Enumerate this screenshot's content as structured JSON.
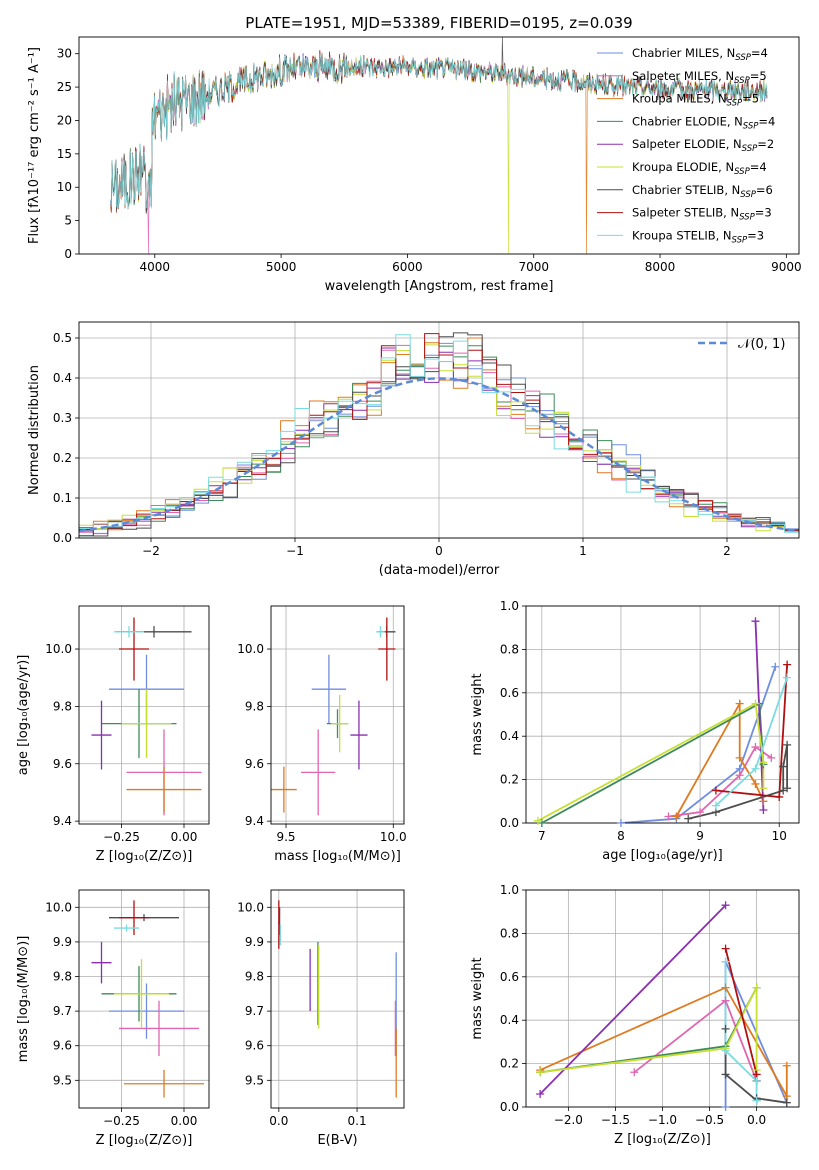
{
  "colors": {
    "Chabrier MILES": "#6f8ee0",
    "Salpeter MILES": "#e066b0",
    "Kroupa MILES": "#e07a1f",
    "Chabrier ELODIE": "#3f8a5a",
    "Salpeter ELODIE": "#8b2fb0",
    "Kroupa ELODIE": "#c6e032",
    "Chabrier STELIB": "#4d4d4d",
    "Salpeter STELIB": "#b01010",
    "Kroupa STELIB": "#7adbe0"
  },
  "chart_data": [
    {
      "id": "spectrum",
      "type": "line",
      "title": "PLATE=1951, MJD=53389, FIBERID=0195, z=0.039",
      "xlabel": "wavelength [Angstrom, rest frame]",
      "ylabel": "Flux [fλ10⁻¹⁷ erg cm⁻² s⁻¹ A⁻¹]",
      "xlim": [
        3400,
        9100
      ],
      "ylim": [
        0,
        32.5
      ],
      "xticks": [
        4000,
        5000,
        6000,
        7000,
        8000,
        9000
      ],
      "yticks": [
        0,
        5,
        10,
        15,
        20,
        25,
        30
      ],
      "grid": false,
      "legend_position": "top-right",
      "legend": [
        {
          "label": "Chabrier MILES, N",
          "sub": "SSP",
          "suffix": "=4"
        },
        {
          "label": "Salpeter MILES, N",
          "sub": "SSP",
          "suffix": "=5"
        },
        {
          "label": "Kroupa MILES, N",
          "sub": "SSP",
          "suffix": "=5"
        },
        {
          "label": "Chabrier ELODIE, N",
          "sub": "SSP",
          "suffix": "=4"
        },
        {
          "label": "Salpeter ELODIE, N",
          "sub": "SSP",
          "suffix": "=2"
        },
        {
          "label": "Kroupa ELODIE, N",
          "sub": "SSP",
          "suffix": "=4"
        },
        {
          "label": "Chabrier STELIB, N",
          "sub": "SSP",
          "suffix": "=6"
        },
        {
          "label": "Salpeter STELIB, N",
          "sub": "SSP",
          "suffix": "=3"
        },
        {
          "label": "Kroupa STELIB, N",
          "sub": "SSP",
          "suffix": "=3"
        }
      ],
      "continuum": {
        "x": [
          3650,
          3800,
          3950,
          4000,
          4200,
          4500,
          4800,
          5000,
          5300,
          5600,
          6000,
          6300,
          6600,
          7000,
          7500,
          8000,
          8500,
          8850
        ],
        "y": [
          10,
          11,
          14,
          21,
          23,
          24.5,
          26.5,
          27.5,
          28,
          28,
          28,
          27.8,
          27.3,
          26.5,
          25.5,
          24.7,
          24.5,
          24.5
        ]
      },
      "features": [
        {
          "series": "Salpeter MILES",
          "x": 3950,
          "drop_to": 0
        },
        {
          "series": "Kroupa ELODIE",
          "x": 6800,
          "drop_to": 0
        },
        {
          "series": "Kroupa MILES",
          "x": 7420,
          "drop_to": 0
        },
        {
          "series": "Chabrier STELIB",
          "x": 6750,
          "spike_to": 32.5
        }
      ]
    },
    {
      "id": "residuals",
      "type": "line",
      "xlabel": "(data-model)/error",
      "ylabel": "Normed distribution",
      "xlim": [
        -2.5,
        2.5
      ],
      "ylim": [
        0,
        0.54
      ],
      "xticks": [
        -2,
        -1,
        0,
        1,
        2
      ],
      "xticklabels": [
        "−2",
        "−1",
        "0",
        "1",
        "2"
      ],
      "yticks": [
        0,
        0.1,
        0.2,
        0.3,
        0.4,
        0.5
      ],
      "yticklabels": [
        "0.0",
        "0.1",
        "0.2",
        "0.3",
        "0.4",
        "0.5"
      ],
      "grid": true,
      "legend_position": "top-right",
      "legend": [
        {
          "label": "𝒩(0, 1)"
        }
      ],
      "gaussian": {
        "mean": 0,
        "sigma": 1
      },
      "histogram_bin_width": 0.1
    },
    {
      "id": "z-age",
      "type": "scatter",
      "xlabel": "Z [log₁₀(Z/Z⊙)]",
      "ylabel": "age  [log₁₀(age/yr)]",
      "xlim": [
        -0.42,
        0.1
      ],
      "ylim": [
        9.39,
        10.15
      ],
      "xticks": [
        -0.25,
        0
      ],
      "xticklabels": [
        "−0.25",
        "0.00"
      ],
      "yticks": [
        9.4,
        9.6,
        9.8,
        10.0
      ],
      "yticklabels": [
        "9.4",
        "9.6",
        "9.8",
        "10.0"
      ],
      "grid": true,
      "points": [
        {
          "series": "Chabrier MILES",
          "x": -0.15,
          "y": 9.86,
          "xerr": 0.15,
          "yerr": 0.12
        },
        {
          "series": "Salpeter MILES",
          "x": -0.08,
          "y": 9.57,
          "xerr": 0.15,
          "yerr": 0.15
        },
        {
          "series": "Kroupa MILES",
          "x": -0.08,
          "y": 9.51,
          "xerr": 0.15,
          "yerr": 0.08
        },
        {
          "series": "Chabrier ELODIE",
          "x": -0.18,
          "y": 9.74,
          "xerr": 0.15,
          "yerr": 0.12
        },
        {
          "series": "Salpeter ELODIE",
          "x": -0.33,
          "y": 9.7,
          "xerr": 0.04,
          "yerr": 0.12
        },
        {
          "series": "Kroupa ELODIE",
          "x": -0.15,
          "y": 9.74,
          "xerr": 0.1,
          "yerr": 0.12
        },
        {
          "series": "Chabrier STELIB",
          "x": -0.12,
          "y": 10.06,
          "xerr": 0.15,
          "yerr": 0.02
        },
        {
          "series": "Salpeter STELIB",
          "x": -0.2,
          "y": 10.0,
          "xerr": 0.06,
          "yerr": 0.11
        },
        {
          "series": "Kroupa STELIB",
          "x": -0.22,
          "y": 10.06,
          "xerr": 0.06,
          "yerr": 0.02
        }
      ]
    },
    {
      "id": "mass-age",
      "type": "scatter",
      "xlabel": "mass [log₁₀(M/M⊙)]",
      "xlim": [
        9.43,
        10.05
      ],
      "ylim": [
        9.39,
        10.15
      ],
      "xticks": [
        9.5,
        10.0
      ],
      "xticklabels": [
        "9.5",
        "10.0"
      ],
      "yticks": [
        9.4,
        9.6,
        9.8,
        10.0
      ],
      "yticklabels": [
        "9.4",
        "9.6",
        "9.8",
        "10.0"
      ],
      "grid": true,
      "points": [
        {
          "series": "Chabrier MILES",
          "x": 9.7,
          "y": 9.86,
          "xerr": 0.08,
          "yerr": 0.12
        },
        {
          "series": "Salpeter MILES",
          "x": 9.65,
          "y": 9.57,
          "xerr": 0.08,
          "yerr": 0.15
        },
        {
          "series": "Kroupa MILES",
          "x": 9.49,
          "y": 9.51,
          "xerr": 0.06,
          "yerr": 0.08
        },
        {
          "series": "Chabrier ELODIE",
          "x": 9.74,
          "y": 9.74,
          "xerr": 0.05,
          "yerr": 0.05
        },
        {
          "series": "Salpeter ELODIE",
          "x": 9.84,
          "y": 9.7,
          "xerr": 0.04,
          "yerr": 0.12
        },
        {
          "series": "Kroupa ELODIE",
          "x": 9.75,
          "y": 9.74,
          "xerr": 0.04,
          "yerr": 0.1
        },
        {
          "series": "Chabrier STELIB",
          "x": 9.97,
          "y": 10.06,
          "xerr": 0.04,
          "yerr": 0.02
        },
        {
          "series": "Salpeter STELIB",
          "x": 9.97,
          "y": 10.0,
          "xerr": 0.04,
          "yerr": 0.11
        },
        {
          "series": "Kroupa STELIB",
          "x": 9.94,
          "y": 10.06,
          "xerr": 0.02,
          "yerr": 0.02
        }
      ]
    },
    {
      "id": "age-weight",
      "type": "line",
      "xlabel": "age  [log₁₀(age/yr)]",
      "ylabel": "mass weight",
      "xlim": [
        6.8,
        10.25
      ],
      "ylim": [
        0,
        1.0
      ],
      "xticks": [
        7,
        8,
        9,
        10
      ],
      "yticks": [
        0,
        0.2,
        0.4,
        0.6,
        0.8,
        1.0
      ],
      "yticklabels": [
        "0.0",
        "0.2",
        "0.4",
        "0.6",
        "0.8",
        "1.0"
      ],
      "grid": true,
      "series": [
        {
          "name": "Chabrier MILES",
          "x": [
            8.0,
            8.7,
            9.5,
            9.95
          ],
          "y": [
            0.0,
            0.02,
            0.25,
            0.72
          ]
        },
        {
          "name": "Salpeter MILES",
          "x": [
            8.6,
            9.0,
            9.5,
            9.7,
            9.9
          ],
          "y": [
            0.03,
            0.05,
            0.22,
            0.35,
            0.3
          ]
        },
        {
          "name": "Kroupa MILES",
          "x": [
            8.7,
            9.5,
            9.5,
            9.7,
            9.8
          ],
          "y": [
            0.03,
            0.55,
            0.3,
            0.18,
            0.1
          ]
        },
        {
          "name": "Chabrier ELODIE",
          "x": [
            7.0,
            9.75,
            9.8
          ],
          "y": [
            0.0,
            0.55,
            0.27
          ]
        },
        {
          "name": "Salpeter ELODIE",
          "x": [
            9.7,
            9.8
          ],
          "y": [
            0.93,
            0.06
          ]
        },
        {
          "name": "Kroupa ELODIE",
          "x": [
            6.95,
            9.7,
            9.8,
            9.8
          ],
          "y": [
            0.01,
            0.55,
            0.28,
            0.16
          ]
        },
        {
          "name": "Chabrier STELIB",
          "x": [
            8.85,
            9.2,
            10.05,
            10.05,
            10.1,
            10.1
          ],
          "y": [
            0.02,
            0.05,
            0.15,
            0.26,
            0.36,
            0.16
          ]
        },
        {
          "name": "Salpeter STELIB",
          "x": [
            9.2,
            10.0,
            10.1
          ],
          "y": [
            0.15,
            0.12,
            0.73
          ]
        },
        {
          "name": "Kroupa STELIB",
          "x": [
            9.2,
            9.7,
            10.1
          ],
          "y": [
            0.08,
            0.25,
            0.67
          ]
        }
      ]
    },
    {
      "id": "z-mass",
      "type": "scatter",
      "xlabel": "Z [log₁₀(Z/Z⊙)]",
      "ylabel": "mass [log₁₀(M/M⊙)]",
      "xlim": [
        -0.42,
        0.1
      ],
      "ylim": [
        9.42,
        10.05
      ],
      "xticks": [
        -0.25,
        0
      ],
      "xticklabels": [
        "−0.25",
        "0.00"
      ],
      "yticks": [
        9.5,
        9.6,
        9.7,
        9.8,
        9.9,
        10.0
      ],
      "yticklabels": [
        "9.5",
        "9.6",
        "9.7",
        "9.8",
        "9.9",
        "10.0"
      ],
      "grid": true,
      "points": [
        {
          "series": "Chabrier MILES",
          "x": -0.15,
          "y": 9.7,
          "xerr": 0.15,
          "yerr": 0.08
        },
        {
          "series": "Salpeter MILES",
          "x": -0.1,
          "y": 9.65,
          "xerr": 0.16,
          "yerr": 0.08
        },
        {
          "series": "Kroupa MILES",
          "x": -0.08,
          "y": 9.49,
          "xerr": 0.16,
          "yerr": 0.04
        },
        {
          "series": "Chabrier ELODIE",
          "x": -0.18,
          "y": 9.75,
          "xerr": 0.15,
          "yerr": 0.08
        },
        {
          "series": "Salpeter ELODIE",
          "x": -0.33,
          "y": 9.84,
          "xerr": 0.04,
          "yerr": 0.06
        },
        {
          "series": "Kroupa ELODIE",
          "x": -0.17,
          "y": 9.75,
          "xerr": 0.11,
          "yerr": 0.1
        },
        {
          "series": "Chabrier STELIB",
          "x": -0.16,
          "y": 9.97,
          "xerr": 0.14,
          "yerr": 0.01
        },
        {
          "series": "Salpeter STELIB",
          "x": -0.2,
          "y": 9.97,
          "xerr": 0.06,
          "yerr": 0.05
        },
        {
          "series": "Kroupa STELIB",
          "x": -0.23,
          "y": 9.94,
          "xerr": 0.05,
          "yerr": 0.01
        }
      ]
    },
    {
      "id": "ebv-mass",
      "type": "scatter",
      "xlabel": "E(B-V)",
      "xlim": [
        -0.01,
        0.16
      ],
      "ylim": [
        9.42,
        10.05
      ],
      "xticks": [
        0,
        0.1
      ],
      "xticklabels": [
        "0.0",
        "0.1"
      ],
      "yticks": [
        9.5,
        9.6,
        9.7,
        9.8,
        9.9,
        10.0
      ],
      "yticklabels": [
        "9.5",
        "9.6",
        "9.7",
        "9.8",
        "9.9",
        "10.0"
      ],
      "grid": true,
      "points": [
        {
          "series": "Chabrier MILES",
          "x": 0.15,
          "y": 9.72,
          "xerr": 0,
          "yerr": 0.15
        },
        {
          "series": "Salpeter MILES",
          "x": 0.149,
          "y": 9.65,
          "xerr": 0,
          "yerr": 0.08
        },
        {
          "series": "Kroupa MILES",
          "x": 0.15,
          "y": 9.55,
          "xerr": 0,
          "yerr": 0.1
        },
        {
          "series": "Chabrier ELODIE",
          "x": 0.05,
          "y": 9.78,
          "xerr": 0,
          "yerr": 0.12
        },
        {
          "series": "Salpeter ELODIE",
          "x": 0.04,
          "y": 9.79,
          "xerr": 0,
          "yerr": 0.09
        },
        {
          "series": "Kroupa ELODIE",
          "x": 0.051,
          "y": 9.77,
          "xerr": 0,
          "yerr": 0.12
        },
        {
          "series": "Chabrier STELIB",
          "x": 0.001,
          "y": 9.96,
          "xerr": 0,
          "yerr": 0.04
        },
        {
          "series": "Salpeter STELIB",
          "x": 0.0,
          "y": 9.95,
          "xerr": 0,
          "yerr": 0.07
        },
        {
          "series": "Kroupa STELIB",
          "x": 0.002,
          "y": 9.92,
          "xerr": 0,
          "yerr": 0.03
        }
      ]
    },
    {
      "id": "z-weight",
      "type": "line",
      "xlabel": "Z [log₁₀(Z/Z⊙)]",
      "ylabel": "mass weight",
      "xlim": [
        -2.45,
        0.45
      ],
      "ylim": [
        0,
        1.0
      ],
      "xticks": [
        -2.0,
        -1.5,
        -1.0,
        -0.5,
        0.0
      ],
      "xticklabels": [
        "−2.0",
        "−1.5",
        "−1.0",
        "−0.5",
        "0.0"
      ],
      "yticks": [
        0,
        0.2,
        0.4,
        0.6,
        0.8,
        1.0
      ],
      "yticklabels": [
        "0.0",
        "0.2",
        "0.4",
        "0.6",
        "0.8",
        "1.0"
      ],
      "grid": true,
      "series": [
        {
          "name": "Chabrier MILES",
          "x": [
            -0.33,
            -0.33,
            0.32
          ],
          "y": [
            0.0,
            0.67,
            0.02
          ]
        },
        {
          "name": "Salpeter MILES",
          "x": [
            -1.3,
            -0.33,
            0.0
          ],
          "y": [
            0.16,
            0.49,
            0.12
          ]
        },
        {
          "name": "Kroupa MILES",
          "x": [
            -2.3,
            -0.33,
            0.32,
            0.32
          ],
          "y": [
            0.17,
            0.55,
            0.05,
            0.19
          ]
        },
        {
          "name": "Chabrier ELODIE",
          "x": [
            -2.3,
            -0.33,
            0.0
          ],
          "y": [
            0.16,
            0.28,
            0.55
          ]
        },
        {
          "name": "Salpeter ELODIE",
          "x": [
            -2.3,
            -0.33
          ],
          "y": [
            0.06,
            0.93
          ]
        },
        {
          "name": "Kroupa ELODIE",
          "x": [
            -2.3,
            -0.33,
            0.0,
            0.0
          ],
          "y": [
            0.16,
            0.27,
            0.55,
            0.17
          ]
        },
        {
          "name": "Chabrier STELIB",
          "x": [
            -0.33,
            -0.33,
            0.0,
            0.0,
            0.32
          ],
          "y": [
            0.36,
            0.15,
            0.03,
            0.04,
            0.02
          ]
        },
        {
          "name": "Salpeter STELIB",
          "x": [
            -0.33,
            0.0,
            0.0
          ],
          "y": [
            0.73,
            0.15,
            0.12
          ]
        },
        {
          "name": "Kroupa STELIB",
          "x": [
            -0.33,
            -0.33,
            0.0,
            0.0
          ],
          "y": [
            0.67,
            0.26,
            0.12,
            0.03
          ]
        }
      ]
    }
  ]
}
